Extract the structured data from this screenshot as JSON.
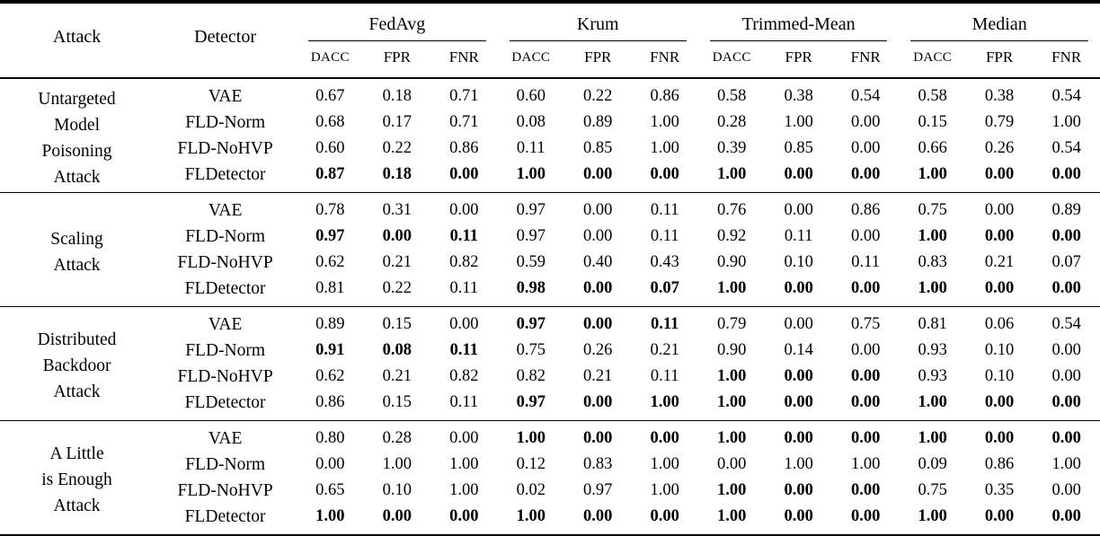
{
  "table": {
    "headers": {
      "attack": "Attack",
      "detector": "Detector"
    },
    "groups": [
      {
        "label": "FedAvg"
      },
      {
        "label": "Krum"
      },
      {
        "label": "Trimmed-Mean"
      },
      {
        "label": "Median"
      }
    ],
    "metrics": [
      "DACC",
      "FPR",
      "FNR"
    ],
    "blocks": [
      {
        "attack_lines": [
          "Untargeted",
          "Model",
          "Poisoning",
          "Attack"
        ],
        "rows": [
          {
            "detector": "VAE",
            "values": [
              "0.67",
              "0.18",
              "0.71",
              "0.60",
              "0.22",
              "0.86",
              "0.58",
              "0.38",
              "0.54",
              "0.58",
              "0.38",
              "0.54"
            ],
            "bold": [
              0,
              0,
              0,
              0,
              0,
              0,
              0,
              0,
              0,
              0,
              0,
              0
            ]
          },
          {
            "detector": "FLD-Norm",
            "values": [
              "0.68",
              "0.17",
              "0.71",
              "0.08",
              "0.89",
              "1.00",
              "0.28",
              "1.00",
              "0.00",
              "0.15",
              "0.79",
              "1.00"
            ],
            "bold": [
              0,
              0,
              0,
              0,
              0,
              0,
              0,
              0,
              0,
              0,
              0,
              0
            ]
          },
          {
            "detector": "FLD-NoHVP",
            "values": [
              "0.60",
              "0.22",
              "0.86",
              "0.11",
              "0.85",
              "1.00",
              "0.39",
              "0.85",
              "0.00",
              "0.66",
              "0.26",
              "0.54"
            ],
            "bold": [
              0,
              0,
              0,
              0,
              0,
              0,
              0,
              0,
              0,
              0,
              0,
              0
            ]
          },
          {
            "detector": "FLDetector",
            "values": [
              "0.87",
              "0.18",
              "0.00",
              "1.00",
              "0.00",
              "0.00",
              "1.00",
              "0.00",
              "0.00",
              "1.00",
              "0.00",
              "0.00"
            ],
            "bold": [
              1,
              1,
              1,
              1,
              1,
              1,
              1,
              1,
              1,
              1,
              1,
              1
            ]
          }
        ]
      },
      {
        "attack_lines": [
          "Scaling",
          "Attack"
        ],
        "rows": [
          {
            "detector": "VAE",
            "values": [
              "0.78",
              "0.31",
              "0.00",
              "0.97",
              "0.00",
              "0.11",
              "0.76",
              "0.00",
              "0.86",
              "0.75",
              "0.00",
              "0.89"
            ],
            "bold": [
              0,
              0,
              0,
              0,
              0,
              0,
              0,
              0,
              0,
              0,
              0,
              0
            ]
          },
          {
            "detector": "FLD-Norm",
            "values": [
              "0.97",
              "0.00",
              "0.11",
              "0.97",
              "0.00",
              "0.11",
              "0.92",
              "0.11",
              "0.00",
              "1.00",
              "0.00",
              "0.00"
            ],
            "bold": [
              1,
              1,
              1,
              0,
              0,
              0,
              0,
              0,
              0,
              1,
              1,
              1
            ]
          },
          {
            "detector": "FLD-NoHVP",
            "values": [
              "0.62",
              "0.21",
              "0.82",
              "0.59",
              "0.40",
              "0.43",
              "0.90",
              "0.10",
              "0.11",
              "0.83",
              "0.21",
              "0.07"
            ],
            "bold": [
              0,
              0,
              0,
              0,
              0,
              0,
              0,
              0,
              0,
              0,
              0,
              0
            ]
          },
          {
            "detector": "FLDetector",
            "values": [
              "0.81",
              "0.22",
              "0.11",
              "0.98",
              "0.00",
              "0.07",
              "1.00",
              "0.00",
              "0.00",
              "1.00",
              "0.00",
              "0.00"
            ],
            "bold": [
              0,
              0,
              0,
              1,
              1,
              1,
              1,
              1,
              1,
              1,
              1,
              1
            ]
          }
        ]
      },
      {
        "attack_lines": [
          "Distributed",
          "Backdoor",
          "Attack"
        ],
        "rows": [
          {
            "detector": "VAE",
            "values": [
              "0.89",
              "0.15",
              "0.00",
              "0.97",
              "0.00",
              "0.11",
              "0.79",
              "0.00",
              "0.75",
              "0.81",
              "0.06",
              "0.54"
            ],
            "bold": [
              0,
              0,
              0,
              1,
              1,
              1,
              0,
              0,
              0,
              0,
              0,
              0
            ]
          },
          {
            "detector": "FLD-Norm",
            "values": [
              "0.91",
              "0.08",
              "0.11",
              "0.75",
              "0.26",
              "0.21",
              "0.90",
              "0.14",
              "0.00",
              "0.93",
              "0.10",
              "0.00"
            ],
            "bold": [
              1,
              1,
              1,
              0,
              0,
              0,
              0,
              0,
              0,
              0,
              0,
              0
            ]
          },
          {
            "detector": "FLD-NoHVP",
            "values": [
              "0.62",
              "0.21",
              "0.82",
              "0.82",
              "0.21",
              "0.11",
              "1.00",
              "0.00",
              "0.00",
              "0.93",
              "0.10",
              "0.00"
            ],
            "bold": [
              0,
              0,
              0,
              0,
              0,
              0,
              1,
              1,
              1,
              0,
              0,
              0
            ]
          },
          {
            "detector": "FLDetector",
            "values": [
              "0.86",
              "0.15",
              "0.11",
              "0.97",
              "0.00",
              "1.00",
              "1.00",
              "0.00",
              "0.00",
              "1.00",
              "0.00",
              "0.00"
            ],
            "bold": [
              0,
              0,
              0,
              1,
              1,
              1,
              1,
              1,
              1,
              1,
              1,
              1
            ]
          }
        ]
      },
      {
        "attack_lines": [
          "A Little",
          "is Enough",
          "Attack"
        ],
        "rows": [
          {
            "detector": "VAE",
            "values": [
              "0.80",
              "0.28",
              "0.00",
              "1.00",
              "0.00",
              "0.00",
              "1.00",
              "0.00",
              "0.00",
              "1.00",
              "0.00",
              "0.00"
            ],
            "bold": [
              0,
              0,
              0,
              1,
              1,
              1,
              1,
              1,
              1,
              1,
              1,
              1
            ]
          },
          {
            "detector": "FLD-Norm",
            "values": [
              "0.00",
              "1.00",
              "1.00",
              "0.12",
              "0.83",
              "1.00",
              "0.00",
              "1.00",
              "1.00",
              "0.09",
              "0.86",
              "1.00"
            ],
            "bold": [
              0,
              0,
              0,
              0,
              0,
              0,
              0,
              0,
              0,
              0,
              0,
              0
            ]
          },
          {
            "detector": "FLD-NoHVP",
            "values": [
              "0.65",
              "0.10",
              "1.00",
              "0.02",
              "0.97",
              "1.00",
              "1.00",
              "0.00",
              "0.00",
              "0.75",
              "0.35",
              "0.00"
            ],
            "bold": [
              0,
              0,
              0,
              0,
              0,
              0,
              1,
              1,
              1,
              0,
              0,
              0
            ]
          },
          {
            "detector": "FLDetector",
            "values": [
              "1.00",
              "0.00",
              "0.00",
              "1.00",
              "0.00",
              "0.00",
              "1.00",
              "0.00",
              "0.00",
              "1.00",
              "0.00",
              "0.00"
            ],
            "bold": [
              1,
              1,
              1,
              1,
              1,
              1,
              1,
              1,
              1,
              1,
              1,
              1
            ]
          }
        ]
      }
    ]
  }
}
